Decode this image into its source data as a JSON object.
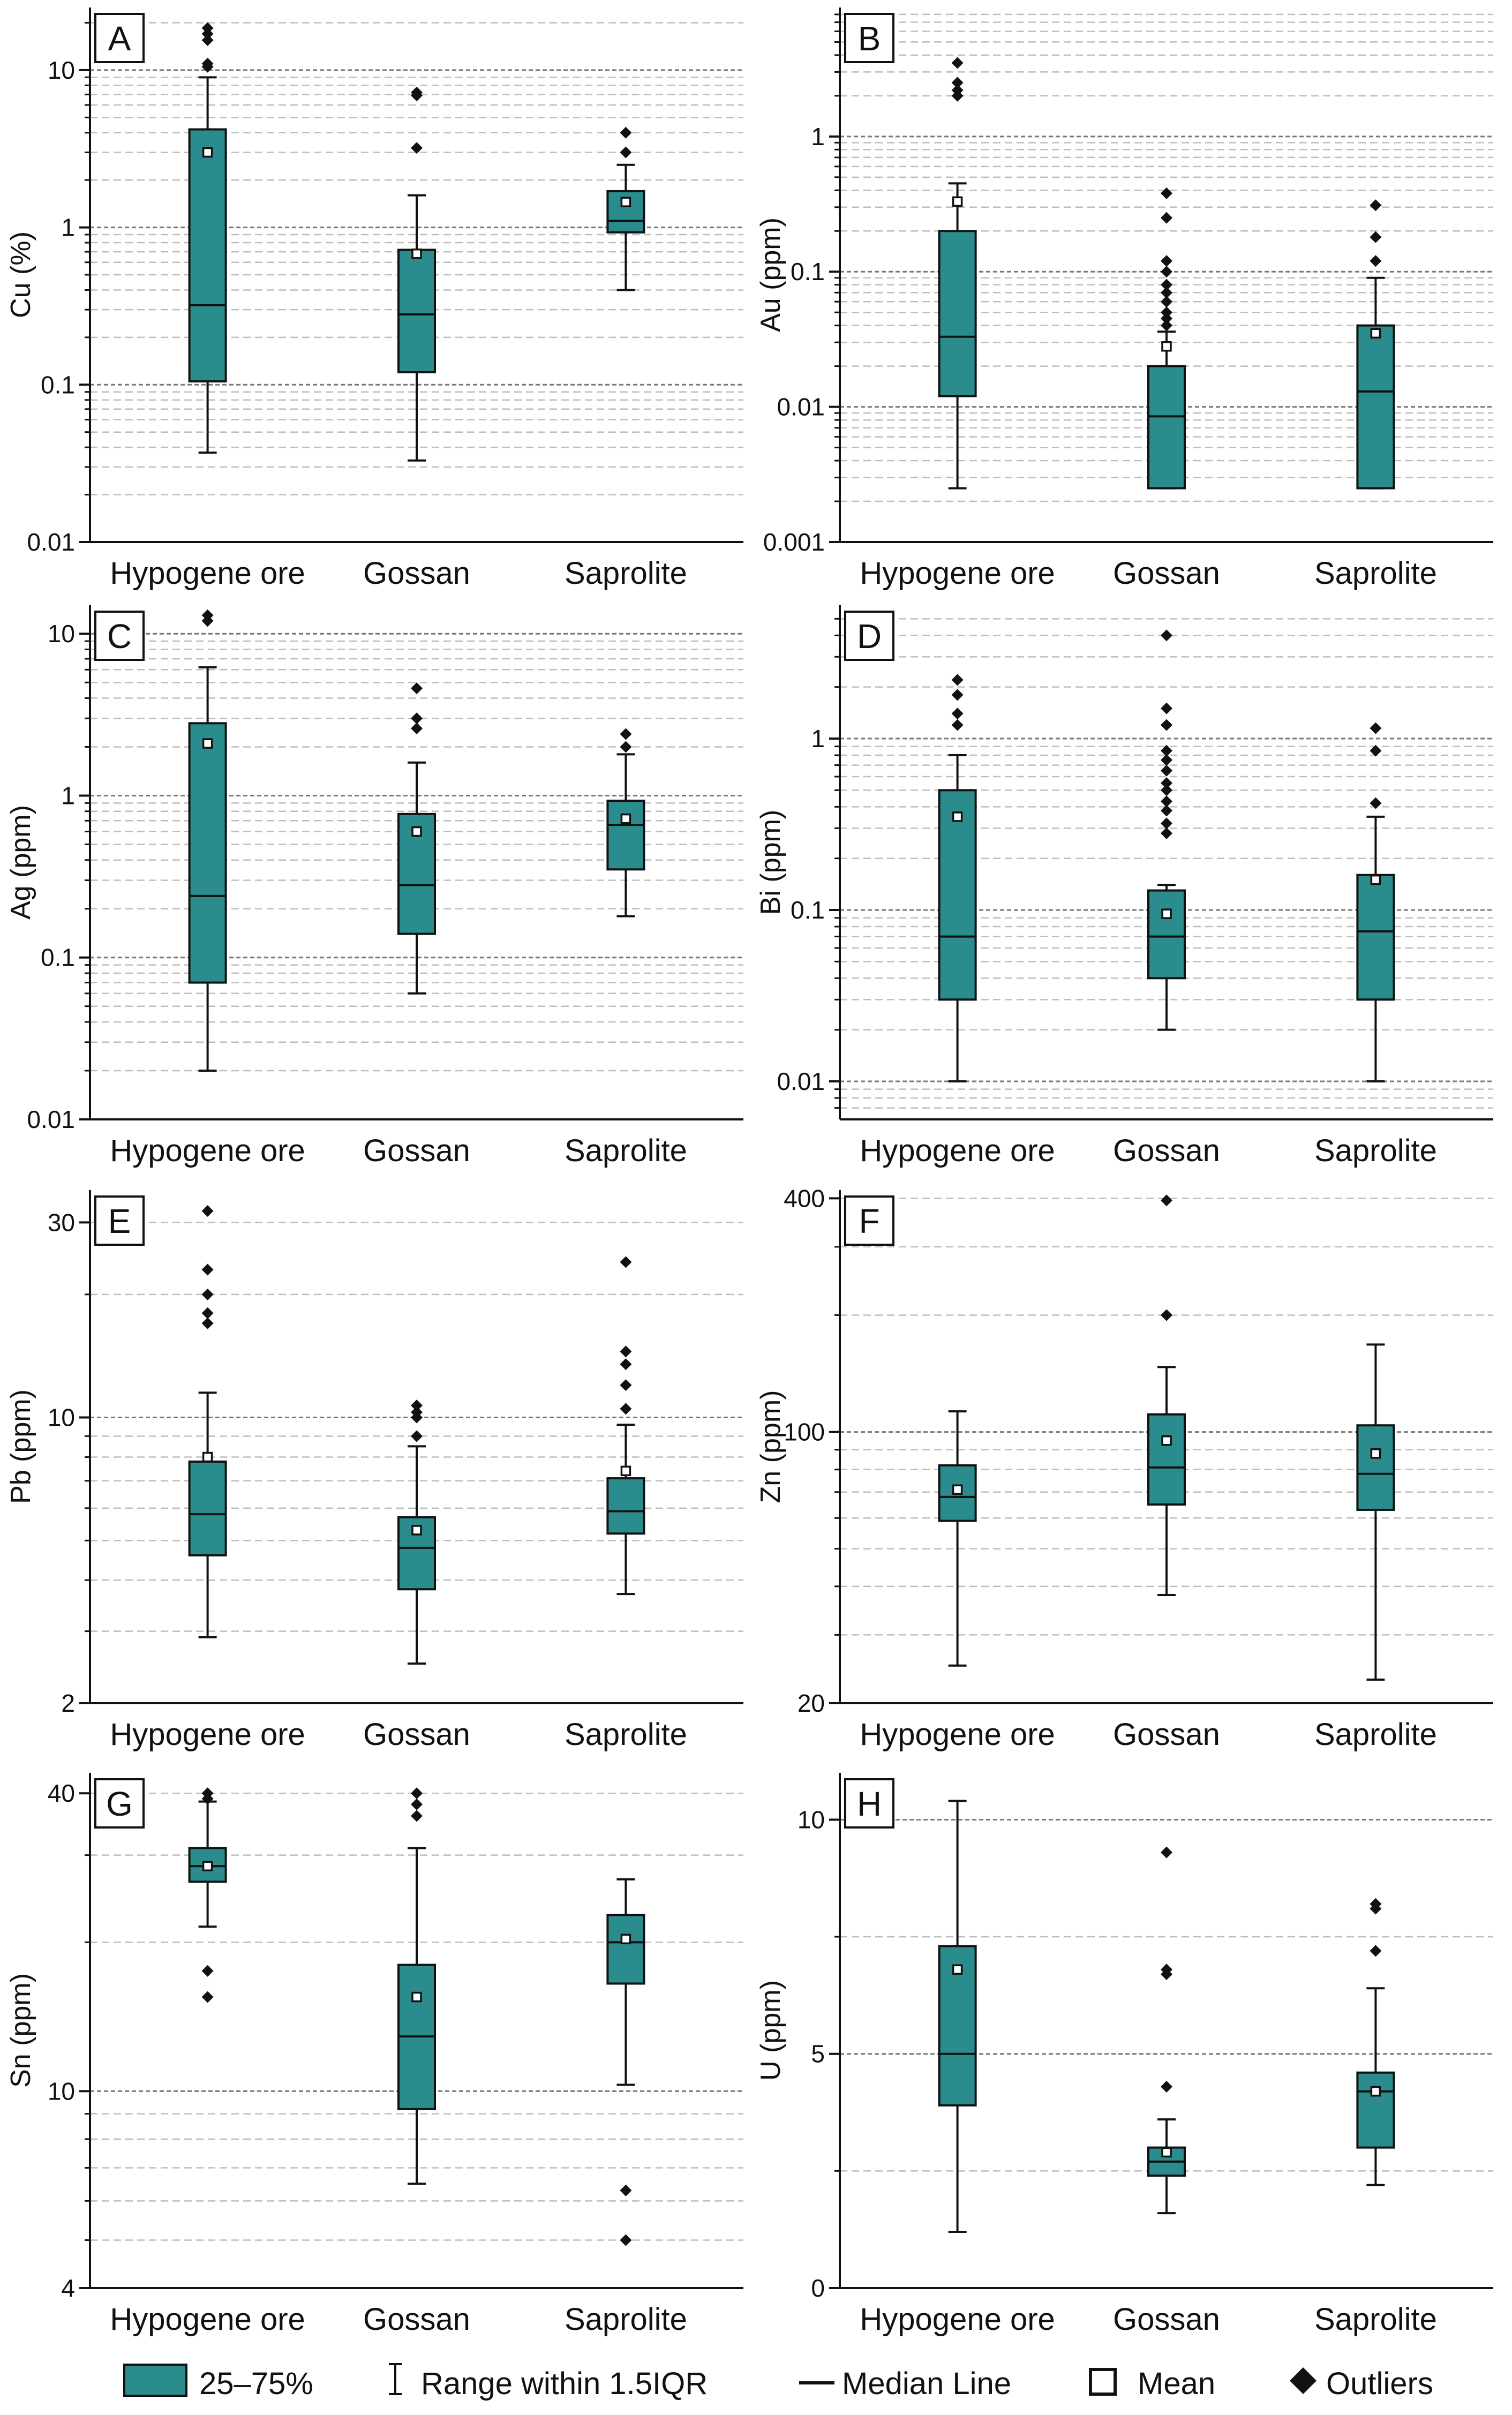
{
  "figure": {
    "box_color": "#2a8c8c",
    "box_stroke": "#111111",
    "grid_color_minor": "#bdbdbd",
    "grid_color_major": "#777777",
    "legend": {
      "box_label": "25–75%",
      "range_label": "Range within 1.5IQR",
      "median_label": "Median Line",
      "mean_label": "Mean",
      "outliers_label": "Outliers"
    }
  },
  "chart_data": [
    {
      "type": "box",
      "panel": "A",
      "scale": "log",
      "ylabel": "Cu (%)",
      "ylim": [
        0.01,
        25
      ],
      "ticks": [
        0.01,
        0.1,
        1,
        10
      ],
      "tick_labels": [
        "0.01",
        "0.1",
        "1",
        "10"
      ],
      "grid": [
        0.02,
        0.03,
        0.04,
        0.05,
        0.06,
        0.07,
        0.08,
        0.09,
        0.1,
        0.2,
        0.3,
        0.4,
        0.5,
        0.6,
        0.7,
        0.8,
        0.9,
        1,
        2,
        3,
        4,
        5,
        6,
        7,
        8,
        9,
        10,
        20
      ],
      "categories": [
        "Hypogene ore",
        "Gossan",
        "Saprolite"
      ],
      "boxes": [
        {
          "q1": 0.105,
          "median": 0.32,
          "q3": 4.2,
          "whisker_low": 0.037,
          "whisker_high": 9.0,
          "mean": 3.0,
          "outliers": [
            10.5,
            11.0,
            15.5,
            17.0,
            18.5
          ]
        },
        {
          "q1": 0.12,
          "median": 0.28,
          "q3": 0.72,
          "whisker_low": 0.033,
          "whisker_high": 1.6,
          "mean": 0.68,
          "outliers": [
            3.2,
            6.9,
            7.2
          ]
        },
        {
          "q1": 0.93,
          "median": 1.1,
          "q3": 1.7,
          "whisker_low": 0.4,
          "whisker_high": 2.5,
          "mean": 1.45,
          "outliers": [
            3.0,
            4.0
          ]
        }
      ]
    },
    {
      "type": "box",
      "panel": "B",
      "scale": "log",
      "ylabel": "Au (ppm)",
      "ylim": [
        0.001,
        9
      ],
      "ticks": [
        0.001,
        0.01,
        0.1,
        1
      ],
      "tick_labels": [
        "0.001",
        "0.01",
        "0.1",
        "1"
      ],
      "grid": [
        0.002,
        0.003,
        0.004,
        0.005,
        0.006,
        0.007,
        0.008,
        0.009,
        0.01,
        0.02,
        0.03,
        0.04,
        0.05,
        0.06,
        0.07,
        0.08,
        0.09,
        0.1,
        0.2,
        0.3,
        0.4,
        0.5,
        0.6,
        0.7,
        0.8,
        0.9,
        1,
        2,
        3,
        4,
        5,
        6,
        7,
        8
      ],
      "categories": [
        "Hypogene ore",
        "Gossan",
        "Saprolite"
      ],
      "boxes": [
        {
          "q1": 0.012,
          "median": 0.033,
          "q3": 0.2,
          "whisker_low": 0.0025,
          "whisker_high": 0.45,
          "mean": 0.33,
          "outliers": [
            2.0,
            2.2,
            2.5,
            3.5
          ]
        },
        {
          "q1": 0.0025,
          "median": 0.0085,
          "q3": 0.02,
          "whisker_low": 0.0025,
          "whisker_high": 0.036,
          "mean": 0.028,
          "outliers": [
            0.04,
            0.045,
            0.05,
            0.06,
            0.07,
            0.08,
            0.1,
            0.12,
            0.25,
            0.38
          ]
        },
        {
          "q1": 0.0025,
          "median": 0.013,
          "q3": 0.04,
          "whisker_low": 0.0025,
          "whisker_high": 0.09,
          "mean": 0.035,
          "outliers": [
            0.12,
            0.18,
            0.31
          ]
        }
      ]
    },
    {
      "type": "box",
      "panel": "C",
      "scale": "log",
      "ylabel": "Ag (ppm)",
      "ylim": [
        0.01,
        15
      ],
      "ticks": [
        0.01,
        0.1,
        1,
        10
      ],
      "tick_labels": [
        "0.01",
        "0.1",
        "1",
        "10"
      ],
      "grid": [
        0.02,
        0.03,
        0.04,
        0.05,
        0.06,
        0.07,
        0.08,
        0.09,
        0.1,
        0.2,
        0.3,
        0.4,
        0.5,
        0.6,
        0.7,
        0.8,
        0.9,
        1,
        2,
        3,
        4,
        5,
        6,
        7,
        8,
        9,
        10
      ],
      "categories": [
        "Hypogene ore",
        "Gossan",
        "Saprolite"
      ],
      "boxes": [
        {
          "q1": 0.07,
          "median": 0.24,
          "q3": 2.8,
          "whisker_low": 0.02,
          "whisker_high": 6.2,
          "mean": 2.1,
          "outliers": [
            12.0,
            13.0
          ]
        },
        {
          "q1": 0.14,
          "median": 0.28,
          "q3": 0.77,
          "whisker_low": 0.06,
          "whisker_high": 1.6,
          "mean": 0.6,
          "outliers": [
            2.6,
            3.0,
            4.6
          ]
        },
        {
          "q1": 0.35,
          "median": 0.66,
          "q3": 0.93,
          "whisker_low": 0.18,
          "whisker_high": 1.8,
          "mean": 0.72,
          "outliers": [
            2.0,
            2.4
          ]
        }
      ]
    },
    {
      "type": "box",
      "panel": "D",
      "scale": "log",
      "ylabel": "Bi (ppm)",
      "ylim": [
        0.006,
        6
      ],
      "ticks": [
        0.01,
        0.1,
        1
      ],
      "tick_labels": [
        "0.01",
        "0.1",
        "1"
      ],
      "grid": [
        0.007,
        0.008,
        0.009,
        0.01,
        0.02,
        0.03,
        0.04,
        0.05,
        0.06,
        0.07,
        0.08,
        0.09,
        0.1,
        0.2,
        0.3,
        0.4,
        0.5,
        0.6,
        0.7,
        0.8,
        0.9,
        1,
        2,
        3,
        4,
        5
      ],
      "categories": [
        "Hypogene ore",
        "Gossan",
        "Saprolite"
      ],
      "boxes": [
        {
          "q1": 0.03,
          "median": 0.07,
          "q3": 0.5,
          "whisker_low": 0.01,
          "whisker_high": 0.8,
          "mean": 0.35,
          "outliers": [
            1.2,
            1.4,
            1.8,
            2.2
          ]
        },
        {
          "q1": 0.04,
          "median": 0.07,
          "q3": 0.13,
          "whisker_low": 0.02,
          "whisker_high": 0.14,
          "mean": 0.095,
          "outliers": [
            0.28,
            0.32,
            0.38,
            0.43,
            0.5,
            0.55,
            0.65,
            0.75,
            0.85,
            1.2,
            1.5,
            4.0
          ]
        },
        {
          "q1": 0.03,
          "median": 0.075,
          "q3": 0.16,
          "whisker_low": 0.01,
          "whisker_high": 0.35,
          "mean": 0.15,
          "outliers": [
            0.42,
            0.85,
            1.15
          ]
        }
      ]
    },
    {
      "type": "box",
      "panel": "E",
      "scale": "log",
      "ylabel": "Pb (ppm)",
      "ylim": [
        2,
        36
      ],
      "ticks": [
        2,
        10,
        30
      ],
      "tick_labels": [
        "2",
        "10",
        "30"
      ],
      "grid": [
        3,
        4,
        5,
        6,
        7,
        8,
        9,
        10,
        20,
        30
      ],
      "categories": [
        "Hypogene ore",
        "Gossan",
        "Saprolite"
      ],
      "boxes": [
        {
          "q1": 4.6,
          "median": 5.8,
          "q3": 7.8,
          "whisker_low": 2.9,
          "whisker_high": 11.5,
          "mean": 8.0,
          "outliers": [
            17.0,
            18.0,
            20.0,
            23.0,
            32.0
          ]
        },
        {
          "q1": 3.8,
          "median": 4.8,
          "q3": 5.7,
          "whisker_low": 2.5,
          "whisker_high": 8.5,
          "mean": 5.3,
          "outliers": [
            9.0,
            10.0,
            10.3,
            10.7
          ]
        },
        {
          "q1": 5.2,
          "median": 5.9,
          "q3": 7.1,
          "whisker_low": 3.7,
          "whisker_high": 9.6,
          "mean": 7.4,
          "outliers": [
            10.5,
            12.0,
            13.5,
            14.5,
            24.0
          ]
        }
      ]
    },
    {
      "type": "box",
      "panel": "F",
      "scale": "log",
      "ylabel": "Zn (ppm)",
      "ylim": [
        20,
        420
      ],
      "ticks": [
        20,
        100,
        400
      ],
      "tick_labels": [
        "20",
        "100",
        "400"
      ],
      "grid": [
        30,
        40,
        50,
        60,
        70,
        80,
        90,
        100,
        200,
        300,
        400
      ],
      "categories": [
        "Hypogene ore",
        "Gossan",
        "Saprolite"
      ],
      "boxes": [
        {
          "q1": 59,
          "median": 68,
          "q3": 82,
          "whisker_low": 25,
          "whisker_high": 113,
          "mean": 71,
          "outliers": []
        },
        {
          "q1": 65,
          "median": 81,
          "q3": 111,
          "whisker_low": 38,
          "whisker_high": 147,
          "mean": 95,
          "outliers": [
            200,
            395
          ]
        },
        {
          "q1": 63,
          "median": 78,
          "q3": 104,
          "whisker_low": 23,
          "whisker_high": 168,
          "mean": 88,
          "outliers": []
        }
      ]
    },
    {
      "type": "box",
      "panel": "G",
      "scale": "log",
      "ylabel": "Sn (ppm)",
      "ylim": [
        4,
        44
      ],
      "ticks": [
        4,
        10,
        40
      ],
      "tick_labels": [
        "4",
        "10",
        "40"
      ],
      "grid": [
        5,
        6,
        7,
        8,
        9,
        10,
        20,
        30,
        40
      ],
      "categories": [
        "Hypogene ore",
        "Gossan",
        "Saprolite"
      ],
      "boxes": [
        {
          "q1": 26.5,
          "median": 28.5,
          "q3": 31,
          "whisker_low": 21.5,
          "whisker_high": 38.5,
          "mean": 28.5,
          "outliers": [
            15.5,
            17.5,
            39.0,
            40.0
          ]
        },
        {
          "q1": 9.2,
          "median": 12.9,
          "q3": 18,
          "whisker_low": 6.5,
          "whisker_high": 31,
          "mean": 15.5,
          "outliers": [
            36.0,
            38.0,
            40.0
          ]
        },
        {
          "q1": 16.5,
          "median": 20.0,
          "q3": 22.7,
          "whisker_low": 10.3,
          "whisker_high": 26.8,
          "mean": 20.3,
          "outliers": [
            5.0,
            6.3
          ]
        }
      ]
    },
    {
      "type": "box",
      "panel": "H",
      "scale": "linear",
      "ylabel": "U (ppm)",
      "ylim": [
        0,
        11
      ],
      "ticks": [
        0,
        5,
        10
      ],
      "tick_labels": [
        "0",
        "5",
        "10"
      ],
      "grid": [
        2.5,
        5,
        7.5,
        10
      ],
      "categories": [
        "Hypogene ore",
        "Gossan",
        "Saprolite"
      ],
      "boxes": [
        {
          "q1": 3.9,
          "median": 5.0,
          "q3": 7.3,
          "whisker_low": 1.2,
          "whisker_high": 10.4,
          "mean": 6.8,
          "outliers": []
        },
        {
          "q1": 2.4,
          "median": 2.7,
          "q3": 3.0,
          "whisker_low": 1.6,
          "whisker_high": 3.6,
          "mean": 2.9,
          "outliers": [
            4.3,
            6.7,
            6.8,
            9.3
          ]
        },
        {
          "q1": 3.0,
          "median": 4.2,
          "q3": 4.6,
          "whisker_low": 2.2,
          "whisker_high": 6.4,
          "mean": 4.2,
          "outliers": [
            7.2,
            8.1,
            8.2
          ]
        }
      ]
    }
  ]
}
